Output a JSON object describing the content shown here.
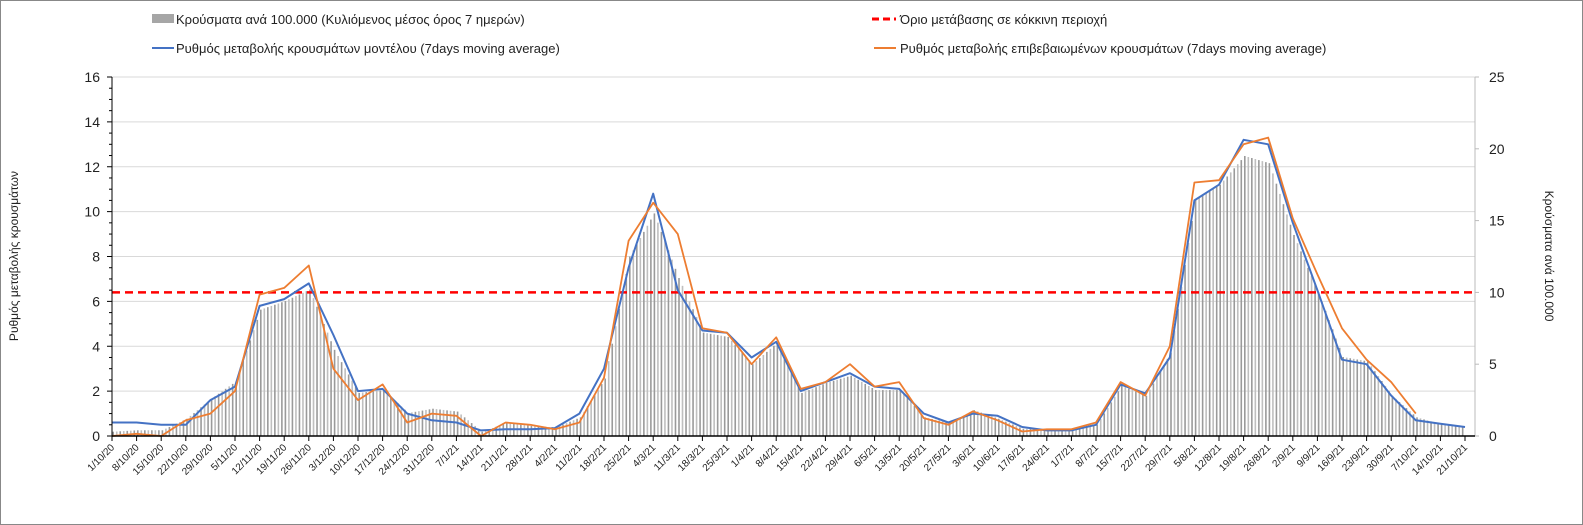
{
  "chart_data": {
    "type": "bar+line",
    "legend": {
      "bars": "Κρούσματα ανά 100.000 (Κυλιόμενος μέσος όρος 7 ημερών)",
      "threshold": "Όριο μετάβασης  σε κόκκινη περιοχή",
      "model": "Ρυθμός μεταβολής κρουσμάτων μοντέλου (7days moving average)",
      "confirmed": "Ρυθμός μεταβολής επιβεβαιωμένων κρουσμάτων (7days moving average)"
    },
    "ylabel_left": "Ρυθμός μεταβολής κρουσμάτων",
    "ylabel_right": "Κρούσματα ανά 100.000",
    "ylim_left": [
      0,
      16
    ],
    "yticks_left": [
      "0",
      "2",
      "4",
      "6",
      "8",
      "10",
      "12",
      "14",
      "16"
    ],
    "ylim_right": [
      0,
      25
    ],
    "yticks_right": [
      "0",
      "5",
      "10",
      "15",
      "20",
      "25"
    ],
    "threshold_right": 10,
    "categories": [
      "1/10/20",
      "8/10/20",
      "15/10/20",
      "22/10/20",
      "29/10/20",
      "5/11/20",
      "12/11/20",
      "19/11/20",
      "26/11/20",
      "3/12/20",
      "10/12/20",
      "17/12/20",
      "24/12/20",
      "31/12/20",
      "7/1/21",
      "14/1/21",
      "21/1/21",
      "28/1/21",
      "4/2/21",
      "11/2/21",
      "18/2/21",
      "25/2/21",
      "4/3/21",
      "11/3/21",
      "18/3/21",
      "25/3/21",
      "1/4/21",
      "8/4/21",
      "15/4/21",
      "22/4/21",
      "29/4/21",
      "6/5/21",
      "13/5/21",
      "20/5/21",
      "27/5/21",
      "3/6/21",
      "10/6/21",
      "17/6/21",
      "24/6/21",
      "1/7/21",
      "8/7/21",
      "15/7/21",
      "22/7/21",
      "29/7/21",
      "5/8/21",
      "12/8/21",
      "19/8/21",
      "26/8/21",
      "2/9/21",
      "9/9/21",
      "16/9/21",
      "23/9/21",
      "30/9/21",
      "7/10/21",
      "14/10/21",
      "21/10/21"
    ],
    "series": [
      {
        "name": "model",
        "axis": "left",
        "color": "#4472c4",
        "values": [
          0.6,
          0.6,
          0.5,
          0.5,
          1.6,
          2.2,
          5.8,
          6.1,
          6.8,
          4.5,
          2.0,
          2.1,
          1.0,
          0.7,
          0.6,
          0.25,
          0.3,
          0.3,
          0.35,
          1.0,
          3.0,
          7.5,
          10.8,
          6.5,
          4.7,
          4.6,
          3.5,
          4.2,
          2.0,
          2.4,
          2.8,
          2.2,
          2.1,
          1.0,
          0.6,
          1.0,
          0.9,
          0.4,
          0.25,
          0.25,
          0.5,
          2.3,
          1.9,
          3.5,
          10.5,
          11.2,
          13.2,
          13.0,
          9.5,
          6.5,
          3.4,
          3.2,
          1.8,
          0.7,
          0.55,
          0.4
        ]
      },
      {
        "name": "confirmed",
        "axis": "left",
        "color": "#ed7d31",
        "values": [
          0.0,
          0.1,
          0.0,
          0.7,
          1.0,
          2.0,
          6.3,
          6.6,
          7.6,
          3.0,
          1.6,
          2.3,
          0.6,
          1.0,
          0.9,
          0.0,
          0.6,
          0.5,
          0.3,
          0.6,
          2.6,
          8.7,
          10.4,
          9.0,
          4.8,
          4.6,
          3.2,
          4.4,
          2.1,
          2.4,
          3.2,
          2.2,
          2.4,
          0.8,
          0.5,
          1.1,
          0.7,
          0.2,
          0.3,
          0.3,
          0.6,
          2.4,
          1.8,
          4.0,
          11.3,
          11.4,
          13.0,
          13.3,
          9.7,
          7.2,
          4.8,
          3.4,
          2.4,
          1.0,
          null,
          null
        ]
      },
      {
        "name": "cases_per_100k",
        "axis": "right",
        "color": "#a6a6a6",
        "values": [
          0.3,
          0.4,
          0.4,
          1.2,
          2.6,
          3.8,
          8.8,
          9.4,
          10.2,
          6.0,
          3.0,
          3.2,
          1.6,
          1.9,
          1.7,
          0.3,
          0.9,
          0.7,
          0.6,
          1.3,
          4.0,
          12.5,
          15.5,
          11.0,
          7.2,
          6.9,
          5.0,
          6.5,
          3.0,
          3.7,
          4.2,
          3.2,
          3.2,
          1.3,
          0.9,
          1.8,
          1.2,
          0.5,
          0.5,
          0.4,
          0.8,
          3.5,
          2.8,
          5.8,
          16.5,
          17.5,
          19.5,
          19.0,
          14.0,
          10.0,
          5.5,
          5.2,
          2.8,
          1.3,
          0.8,
          0.6
        ]
      }
    ]
  }
}
